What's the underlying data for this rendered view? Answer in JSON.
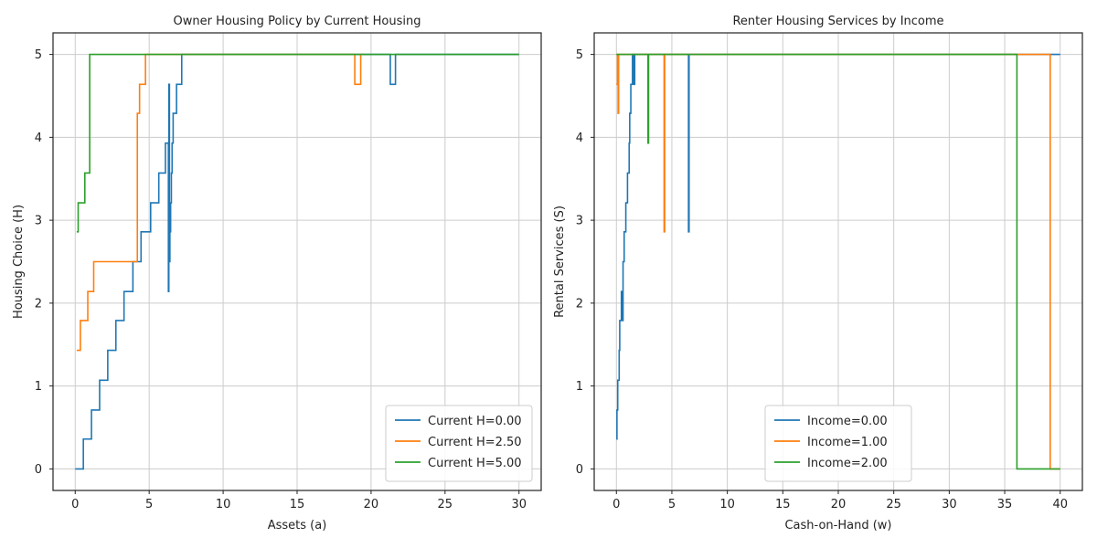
{
  "chart_data": [
    {
      "type": "line",
      "title": "Owner Housing Policy by Current Housing",
      "xlabel": "Assets (a)",
      "ylabel": "Housing Choice (H)",
      "xlim": [
        -1.5,
        31.5
      ],
      "ylim": [
        -0.26,
        5.26
      ],
      "xticks": [
        0,
        5,
        10,
        15,
        20,
        25,
        30
      ],
      "yticks": [
        0,
        1,
        2,
        3,
        4,
        5
      ],
      "grid": true,
      "legend_position": "bottom-right",
      "series": [
        {
          "name": "Current H=0.00",
          "color": "#1f77b4",
          "points": [
            [
              0,
              0
            ],
            [
              0.55,
              0
            ],
            [
              0.55,
              0.36
            ],
            [
              1.1,
              0.36
            ],
            [
              1.1,
              0.71
            ],
            [
              1.65,
              0.71
            ],
            [
              1.65,
              1.07
            ],
            [
              2.2,
              1.07
            ],
            [
              2.2,
              1.43
            ],
            [
              2.75,
              1.43
            ],
            [
              2.75,
              1.79
            ],
            [
              3.3,
              1.79
            ],
            [
              3.3,
              2.14
            ],
            [
              3.9,
              2.14
            ],
            [
              3.9,
              2.5
            ],
            [
              4.45,
              2.5
            ],
            [
              4.45,
              2.86
            ],
            [
              5.1,
              2.86
            ],
            [
              5.1,
              3.21
            ],
            [
              5.65,
              3.21
            ],
            [
              5.65,
              3.57
            ],
            [
              6.1,
              3.57
            ],
            [
              6.1,
              3.93
            ],
            [
              6.3,
              3.93
            ],
            [
              6.3,
              2.14
            ],
            [
              6.33,
              2.14
            ],
            [
              6.33,
              4.64
            ],
            [
              6.37,
              4.64
            ],
            [
              6.37,
              2.5
            ],
            [
              6.4,
              2.5
            ],
            [
              6.4,
              2.86
            ],
            [
              6.45,
              2.86
            ],
            [
              6.45,
              3.21
            ],
            [
              6.5,
              3.21
            ],
            [
              6.5,
              3.57
            ],
            [
              6.55,
              3.57
            ],
            [
              6.55,
              3.93
            ],
            [
              6.62,
              3.93
            ],
            [
              6.62,
              4.29
            ],
            [
              6.85,
              4.29
            ],
            [
              6.85,
              4.64
            ],
            [
              7.2,
              4.64
            ],
            [
              7.2,
              5
            ],
            [
              21.3,
              5
            ],
            [
              21.3,
              4.64
            ],
            [
              21.65,
              4.64
            ],
            [
              21.65,
              5
            ],
            [
              30,
              5
            ]
          ]
        },
        {
          "name": "Current H=2.50",
          "color": "#ff7f0e",
          "points": [
            [
              0.1,
              1.43
            ],
            [
              0.35,
              1.43
            ],
            [
              0.35,
              1.79
            ],
            [
              0.85,
              1.79
            ],
            [
              0.85,
              2.14
            ],
            [
              1.25,
              2.14
            ],
            [
              1.25,
              2.5
            ],
            [
              4.2,
              2.5
            ],
            [
              4.2,
              4.29
            ],
            [
              4.35,
              4.29
            ],
            [
              4.35,
              4.64
            ],
            [
              4.75,
              4.64
            ],
            [
              4.75,
              5
            ],
            [
              18.9,
              5
            ],
            [
              18.9,
              4.64
            ],
            [
              19.3,
              4.64
            ],
            [
              19.3,
              5
            ],
            [
              19.5,
              5
            ]
          ]
        },
        {
          "name": "Current H=5.00",
          "color": "#2ca02c",
          "points": [
            [
              0.1,
              2.86
            ],
            [
              0.2,
              2.86
            ],
            [
              0.2,
              3.21
            ],
            [
              0.65,
              3.21
            ],
            [
              0.65,
              3.57
            ],
            [
              0.98,
              3.57
            ],
            [
              0.98,
              5
            ],
            [
              30,
              5
            ]
          ]
        }
      ]
    },
    {
      "type": "line",
      "title": "Renter Housing Services by Income",
      "xlabel": "Cash-on-Hand (w)",
      "ylabel": "Rental Services (S)",
      "xlim": [
        -2,
        42
      ],
      "ylim": [
        -0.26,
        5.26
      ],
      "xticks": [
        0,
        5,
        10,
        15,
        20,
        25,
        30,
        35,
        40
      ],
      "yticks": [
        0,
        1,
        2,
        3,
        4,
        5
      ],
      "grid": true,
      "legend_position": "bottom-center",
      "series": [
        {
          "name": "Income=0.00",
          "color": "#1f77b4",
          "points": [
            [
              0,
              0.36
            ],
            [
              0.05,
              0.36
            ],
            [
              0.05,
              0.71
            ],
            [
              0.12,
              0.71
            ],
            [
              0.12,
              1.07
            ],
            [
              0.25,
              1.07
            ],
            [
              0.25,
              1.43
            ],
            [
              0.3,
              1.43
            ],
            [
              0.3,
              1.79
            ],
            [
              0.45,
              1.79
            ],
            [
              0.45,
              2.14
            ],
            [
              0.55,
              2.14
            ],
            [
              0.55,
              1.79
            ],
            [
              0.6,
              1.79
            ],
            [
              0.6,
              2.5
            ],
            [
              0.7,
              2.5
            ],
            [
              0.7,
              2.86
            ],
            [
              0.85,
              2.86
            ],
            [
              0.85,
              3.21
            ],
            [
              1.0,
              3.21
            ],
            [
              1.0,
              3.57
            ],
            [
              1.15,
              3.57
            ],
            [
              1.15,
              3.93
            ],
            [
              1.2,
              3.93
            ],
            [
              1.2,
              4.29
            ],
            [
              1.3,
              4.29
            ],
            [
              1.3,
              4.64
            ],
            [
              1.45,
              4.64
            ],
            [
              1.45,
              5
            ],
            [
              1.55,
              5
            ],
            [
              1.55,
              4.64
            ],
            [
              1.65,
              4.64
            ],
            [
              1.65,
              5
            ],
            [
              6.5,
              5
            ],
            [
              6.5,
              2.86
            ],
            [
              6.55,
              2.86
            ],
            [
              6.55,
              5
            ],
            [
              40,
              5
            ]
          ]
        },
        {
          "name": "Income=1.00",
          "color": "#ff7f0e",
          "points": [
            [
              0,
              4.64
            ],
            [
              0.1,
              4.64
            ],
            [
              0.1,
              5
            ],
            [
              0.15,
              5
            ],
            [
              0.15,
              4.29
            ],
            [
              0.2,
              4.29
            ],
            [
              0.2,
              5
            ],
            [
              4.3,
              5
            ],
            [
              4.3,
              2.86
            ],
            [
              4.35,
              2.86
            ],
            [
              4.35,
              5
            ],
            [
              39.1,
              5
            ],
            [
              39.1,
              0
            ],
            [
              40,
              0
            ]
          ]
        },
        {
          "name": "Income=2.00",
          "color": "#2ca02c",
          "points": [
            [
              0,
              5
            ],
            [
              2.85,
              5
            ],
            [
              2.85,
              3.93
            ],
            [
              2.9,
              3.93
            ],
            [
              2.9,
              5
            ],
            [
              36.1,
              5
            ],
            [
              36.1,
              0
            ],
            [
              40,
              0
            ]
          ]
        }
      ]
    }
  ]
}
